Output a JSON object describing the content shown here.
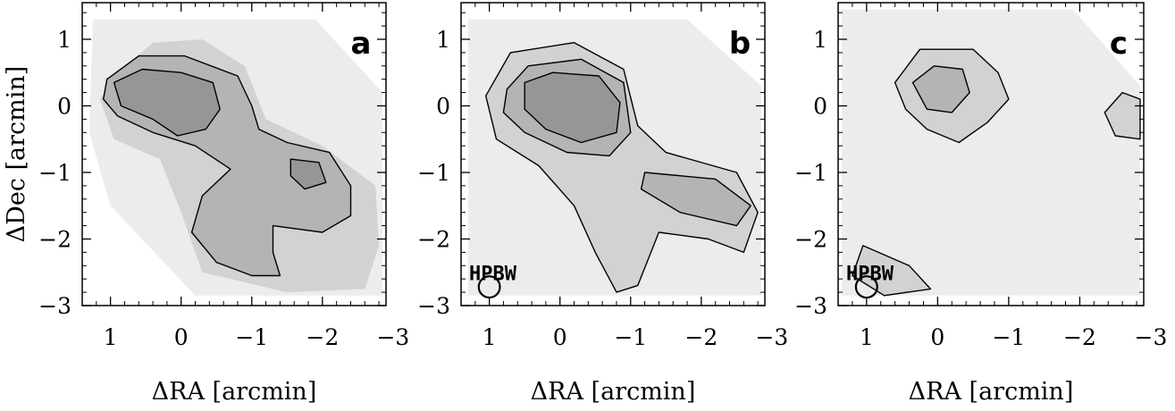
{
  "figure": {
    "colors": {
      "background": "#ffffff",
      "level1": "#ececec",
      "level2": "#d2d2d2",
      "level3": "#b4b4b4",
      "level4": "#969696",
      "contour": "#000000"
    }
  },
  "chart_data": [
    {
      "type": "heatmap",
      "panel_label": "a",
      "xlabel": "ΔRA [arcmin]",
      "ylabel": "ΔDec [arcmin]",
      "xlim": [
        1.4,
        -2.9
      ],
      "ylim": [
        -3,
        1.55
      ],
      "xticks": [
        1,
        0,
        -1,
        -2,
        -3
      ],
      "yticks": [
        1,
        0,
        -1,
        -2,
        -3
      ],
      "xtick_labels": [
        "1",
        "0",
        "−1",
        "−2",
        "−3"
      ],
      "ytick_labels": [
        "1",
        "0",
        "−1",
        "−2",
        "−3"
      ],
      "hpbw_label": "",
      "hpbw_beam": null,
      "emission": [
        {
          "level": 1,
          "contour": false,
          "points": [
            [
              1.25,
              1.3
            ],
            [
              -1.9,
              1.3
            ],
            [
              -2.85,
              0.2
            ],
            [
              -2.85,
              -2.85
            ],
            [
              -0.2,
              -2.85
            ],
            [
              1.0,
              -1.5
            ],
            [
              1.3,
              -0.4
            ]
          ]
        },
        {
          "level": 2,
          "contour": false,
          "points": [
            [
              0.95,
              0.45
            ],
            [
              0.4,
              0.95
            ],
            [
              -0.3,
              1.0
            ],
            [
              -0.9,
              0.6
            ],
            [
              -1.2,
              -0.2
            ],
            [
              -2.0,
              -0.6
            ],
            [
              -2.75,
              -1.2
            ],
            [
              -2.8,
              -2.1
            ],
            [
              -2.6,
              -2.75
            ],
            [
              -1.5,
              -2.8
            ],
            [
              -0.3,
              -2.5
            ],
            [
              0.0,
              -1.6
            ],
            [
              0.3,
              -0.8
            ],
            [
              0.95,
              -0.5
            ],
            [
              1.15,
              0.1
            ]
          ]
        },
        {
          "level": 3,
          "contour": true,
          "points": [
            [
              1.05,
              0.4
            ],
            [
              0.6,
              0.75
            ],
            [
              -0.05,
              0.75
            ],
            [
              -0.8,
              0.45
            ],
            [
              -1.0,
              0.0
            ],
            [
              -1.1,
              -0.35
            ],
            [
              -1.5,
              -0.55
            ],
            [
              -2.1,
              -0.7
            ],
            [
              -2.4,
              -1.2
            ],
            [
              -2.4,
              -1.65
            ],
            [
              -2.0,
              -1.9
            ],
            [
              -1.3,
              -1.8
            ],
            [
              -1.3,
              -2.2
            ],
            [
              -1.4,
              -2.55
            ],
            [
              -1.0,
              -2.55
            ],
            [
              -0.5,
              -2.35
            ],
            [
              -0.15,
              -1.9
            ],
            [
              -0.3,
              -1.35
            ],
            [
              -0.7,
              -0.95
            ],
            [
              -0.2,
              -0.6
            ],
            [
              0.4,
              -0.4
            ],
            [
              0.9,
              -0.15
            ],
            [
              1.1,
              0.1
            ]
          ]
        },
        {
          "level": 4,
          "contour": true,
          "points": [
            [
              0.95,
              0.35
            ],
            [
              0.55,
              0.55
            ],
            [
              0.0,
              0.5
            ],
            [
              -0.45,
              0.35
            ],
            [
              -0.55,
              -0.05
            ],
            [
              -0.35,
              -0.35
            ],
            [
              0.05,
              -0.45
            ],
            [
              0.4,
              -0.2
            ],
            [
              0.85,
              0.0
            ]
          ]
        },
        {
          "level": 4,
          "contour": true,
          "points": [
            [
              -1.55,
              -0.8
            ],
            [
              -1.95,
              -0.85
            ],
            [
              -2.05,
              -1.15
            ],
            [
              -1.75,
              -1.25
            ],
            [
              -1.55,
              -1.05
            ]
          ]
        }
      ]
    },
    {
      "type": "heatmap",
      "panel_label": "b",
      "xlabel": "ΔRA [arcmin]",
      "ylabel": "",
      "xlim": [
        1.4,
        -2.9
      ],
      "ylim": [
        -3,
        1.55
      ],
      "xticks": [
        1,
        0,
        -1,
        -2,
        -3
      ],
      "yticks": [
        1,
        0,
        -1,
        -2,
        -3
      ],
      "xtick_labels": [
        "1",
        "0",
        "−1",
        "−2",
        "−3"
      ],
      "ytick_labels": [
        "1",
        "0",
        "−1",
        "−2",
        "−3"
      ],
      "hpbw_label": "HPBW",
      "hpbw_beam": {
        "x": 1.0,
        "y": -2.72,
        "diameter_arcmin": 0.3
      },
      "emission": [
        {
          "level": 1,
          "contour": false,
          "points": [
            [
              1.3,
              1.3
            ],
            [
              -1.8,
              1.3
            ],
            [
              -2.85,
              0.3
            ],
            [
              -2.85,
              -2.85
            ],
            [
              1.3,
              -2.85
            ]
          ]
        },
        {
          "level": 2,
          "contour": true,
          "points": [
            [
              1.05,
              0.15
            ],
            [
              0.7,
              0.8
            ],
            [
              -0.2,
              0.95
            ],
            [
              -0.9,
              0.55
            ],
            [
              -1.1,
              -0.3
            ],
            [
              -1.5,
              -0.7
            ],
            [
              -2.5,
              -1.0
            ],
            [
              -2.8,
              -1.6
            ],
            [
              -2.6,
              -2.2
            ],
            [
              -2.1,
              -2.0
            ],
            [
              -1.4,
              -1.9
            ],
            [
              -1.1,
              -2.7
            ],
            [
              -0.8,
              -2.8
            ],
            [
              -0.5,
              -2.2
            ],
            [
              -0.2,
              -1.5
            ],
            [
              0.3,
              -0.9
            ],
            [
              0.9,
              -0.5
            ]
          ]
        },
        {
          "level": 3,
          "contour": true,
          "points": [
            [
              0.75,
              0.25
            ],
            [
              0.45,
              0.6
            ],
            [
              -0.3,
              0.7
            ],
            [
              -0.9,
              0.35
            ],
            [
              -1.0,
              -0.4
            ],
            [
              -0.7,
              -0.75
            ],
            [
              -0.1,
              -0.7
            ],
            [
              0.5,
              -0.4
            ],
            [
              0.8,
              -0.1
            ]
          ]
        },
        {
          "level": 3,
          "contour": true,
          "points": [
            [
              -1.2,
              -1.0
            ],
            [
              -2.2,
              -1.1
            ],
            [
              -2.7,
              -1.5
            ],
            [
              -2.5,
              -1.8
            ],
            [
              -1.7,
              -1.6
            ],
            [
              -1.15,
              -1.25
            ]
          ]
        },
        {
          "level": 4,
          "contour": true,
          "points": [
            [
              0.5,
              0.35
            ],
            [
              0.1,
              0.5
            ],
            [
              -0.55,
              0.45
            ],
            [
              -0.85,
              0.05
            ],
            [
              -0.8,
              -0.4
            ],
            [
              -0.3,
              -0.55
            ],
            [
              0.2,
              -0.35
            ],
            [
              0.5,
              -0.05
            ]
          ]
        }
      ]
    },
    {
      "type": "heatmap",
      "panel_label": "c",
      "xlabel": "ΔRA [arcmin]",
      "ylabel": "",
      "xlim": [
        1.4,
        -2.9
      ],
      "ylim": [
        -3,
        1.55
      ],
      "xticks": [
        1,
        0,
        -1,
        -2,
        -3
      ],
      "yticks": [
        1,
        0,
        -1,
        -2,
        -3
      ],
      "xtick_labels": [
        "1",
        "0",
        "−1",
        "−2",
        "−3"
      ],
      "ytick_labels": [
        "1",
        "0",
        "−1",
        "−2",
        "−3"
      ],
      "hpbw_label": "HPBW",
      "hpbw_beam": {
        "x": 1.0,
        "y": -2.72,
        "diameter_arcmin": 0.3
      },
      "emission": [
        {
          "level": 1,
          "contour": false,
          "points": [
            [
              1.35,
              1.45
            ],
            [
              -1.9,
              1.45
            ],
            [
              -2.85,
              0.3
            ],
            [
              -2.85,
              -2.85
            ],
            [
              1.35,
              -2.85
            ]
          ]
        },
        {
          "level": 2,
          "contour": true,
          "points": [
            [
              0.6,
              0.35
            ],
            [
              0.25,
              0.85
            ],
            [
              -0.5,
              0.85
            ],
            [
              -0.85,
              0.5
            ],
            [
              -1.0,
              0.1
            ],
            [
              -0.7,
              -0.25
            ],
            [
              -0.3,
              -0.55
            ],
            [
              0.15,
              -0.35
            ],
            [
              0.45,
              -0.05
            ]
          ]
        },
        {
          "level": 3,
          "contour": true,
          "points": [
            [
              0.35,
              0.35
            ],
            [
              0.05,
              0.6
            ],
            [
              -0.35,
              0.55
            ],
            [
              -0.45,
              0.2
            ],
            [
              -0.2,
              -0.1
            ],
            [
              0.15,
              -0.05
            ]
          ]
        },
        {
          "level": 2,
          "contour": true,
          "points": [
            [
              -2.35,
              -0.1
            ],
            [
              -2.6,
              0.2
            ],
            [
              -2.85,
              0.1
            ],
            [
              -2.85,
              -0.5
            ],
            [
              -2.5,
              -0.45
            ]
          ]
        },
        {
          "level": 2,
          "contour": true,
          "points": [
            [
              1.05,
              -2.1
            ],
            [
              0.4,
              -2.4
            ],
            [
              0.1,
              -2.75
            ],
            [
              0.75,
              -2.85
            ],
            [
              1.2,
              -2.55
            ]
          ]
        }
      ]
    }
  ]
}
